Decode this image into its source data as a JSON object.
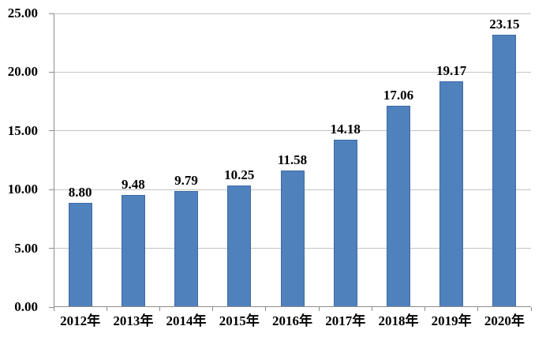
{
  "chart_data": {
    "type": "bar",
    "title": "",
    "xlabel": "",
    "ylabel": "",
    "categories": [
      "2012年",
      "2013年",
      "2014年",
      "2015年",
      "2016年",
      "2017年",
      "2018年",
      "2019年",
      "2020年"
    ],
    "values": [
      8.8,
      9.48,
      9.79,
      10.25,
      11.58,
      14.18,
      17.06,
      19.17,
      23.15
    ],
    "value_labels": [
      "8.80",
      "9.48",
      "9.79",
      "10.25",
      "11.58",
      "14.18",
      "17.06",
      "19.17",
      "23.15"
    ],
    "ylim": [
      0,
      25
    ],
    "ytick_values": [
      0,
      5,
      10,
      15,
      20,
      25
    ],
    "ytick_labels": [
      "0.00",
      "5.00",
      "10.00",
      "15.00",
      "20.00",
      "25.00"
    ],
    "grid": true,
    "legend": false,
    "colors": {
      "bar_fill": "#4f81bd",
      "bar_border": "#3d6ba5",
      "gridline": "#c3c3c3",
      "axis": "#8c8c8c",
      "text": "#000000",
      "background": "#ffffff"
    }
  }
}
